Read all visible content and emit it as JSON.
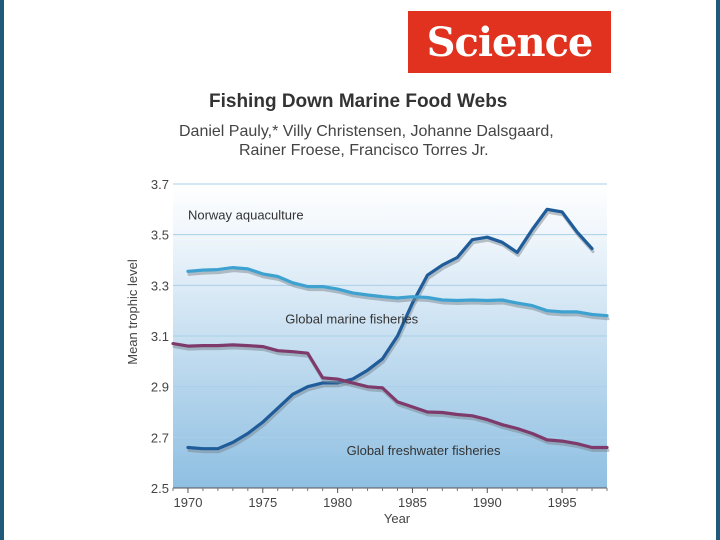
{
  "logo": {
    "text": "Science"
  },
  "paper": {
    "title": "Fishing Down Marine Food Webs",
    "authors_line1": "Daniel Pauly,* Villy Christensen, Johanne Dalsgaard,",
    "authors_line2": "Rainer Froese, Francisco Torres Jr."
  },
  "chart_data": {
    "type": "line",
    "title": "Fishing Down Marine Food Webs",
    "xlabel": "Year",
    "ylabel": "Mean trophic level",
    "xlim": [
      1969,
      1998
    ],
    "ylim": [
      2.5,
      3.7
    ],
    "x_ticks": [
      1970,
      1975,
      1980,
      1985,
      1990,
      1995
    ],
    "y_ticks": [
      2.5,
      2.7,
      2.9,
      3.1,
      3.3,
      3.5,
      3.7
    ],
    "y_tick_labels": [
      "2.5",
      "2.7",
      "2.9",
      "3.1",
      "3.3",
      "3.5",
      "3.7"
    ],
    "series": [
      {
        "name": "Norway aquaculture",
        "color": "#1f5c99",
        "x": [
          1970,
          1971,
          1972,
          1973,
          1974,
          1975,
          1976,
          1977,
          1978,
          1979,
          1980,
          1981,
          1982,
          1983,
          1984,
          1985,
          1986,
          1987,
          1988,
          1989,
          1990,
          1991,
          1992,
          1993,
          1994,
          1995,
          1996,
          1997
        ],
        "values": [
          2.66,
          2.655,
          2.655,
          2.68,
          2.715,
          2.76,
          2.815,
          2.87,
          2.9,
          2.915,
          2.915,
          2.93,
          2.965,
          3.01,
          3.1,
          3.23,
          3.34,
          3.38,
          3.41,
          3.48,
          3.49,
          3.47,
          3.43,
          3.52,
          3.6,
          3.59,
          3.51,
          3.445
        ]
      },
      {
        "name": "Global marine fisheries",
        "color": "#3ea2d1",
        "x": [
          1970,
          1971,
          1972,
          1973,
          1974,
          1975,
          1976,
          1977,
          1978,
          1979,
          1980,
          1981,
          1982,
          1983,
          1984,
          1985,
          1986,
          1987,
          1988,
          1989,
          1990,
          1991,
          1992,
          1993,
          1994,
          1995,
          1996,
          1997,
          1998
        ],
        "values": [
          3.355,
          3.36,
          3.362,
          3.37,
          3.365,
          3.345,
          3.335,
          3.31,
          3.295,
          3.295,
          3.285,
          3.27,
          3.262,
          3.255,
          3.25,
          3.255,
          3.252,
          3.242,
          3.24,
          3.242,
          3.24,
          3.242,
          3.23,
          3.22,
          3.2,
          3.195,
          3.195,
          3.185,
          3.18
        ]
      },
      {
        "name": "Global freshwater fisheries",
        "color": "#7d3a6b",
        "x": [
          1969,
          1970,
          1971,
          1972,
          1973,
          1974,
          1975,
          1976,
          1977,
          1978,
          1979,
          1980,
          1981,
          1982,
          1983,
          1984,
          1985,
          1986,
          1987,
          1988,
          1989,
          1990,
          1991,
          1992,
          1993,
          1994,
          1995,
          1996,
          1997,
          1998
        ],
        "values": [
          3.07,
          3.06,
          3.062,
          3.062,
          3.065,
          3.062,
          3.058,
          3.042,
          3.038,
          3.032,
          2.935,
          2.93,
          2.915,
          2.9,
          2.895,
          2.84,
          2.82,
          2.8,
          2.798,
          2.79,
          2.785,
          2.77,
          2.75,
          2.735,
          2.715,
          2.69,
          2.685,
          2.675,
          2.66,
          2.66
        ]
      }
    ],
    "annotations": [
      {
        "text": "Norway aquaculture",
        "x": 1970,
        "y": 3.56
      },
      {
        "text": "Global marine fisheries",
        "x": 1976.5,
        "y": 3.15
      },
      {
        "text": "Global freshwater fisheries",
        "x": 1980.6,
        "y": 2.63
      }
    ]
  }
}
